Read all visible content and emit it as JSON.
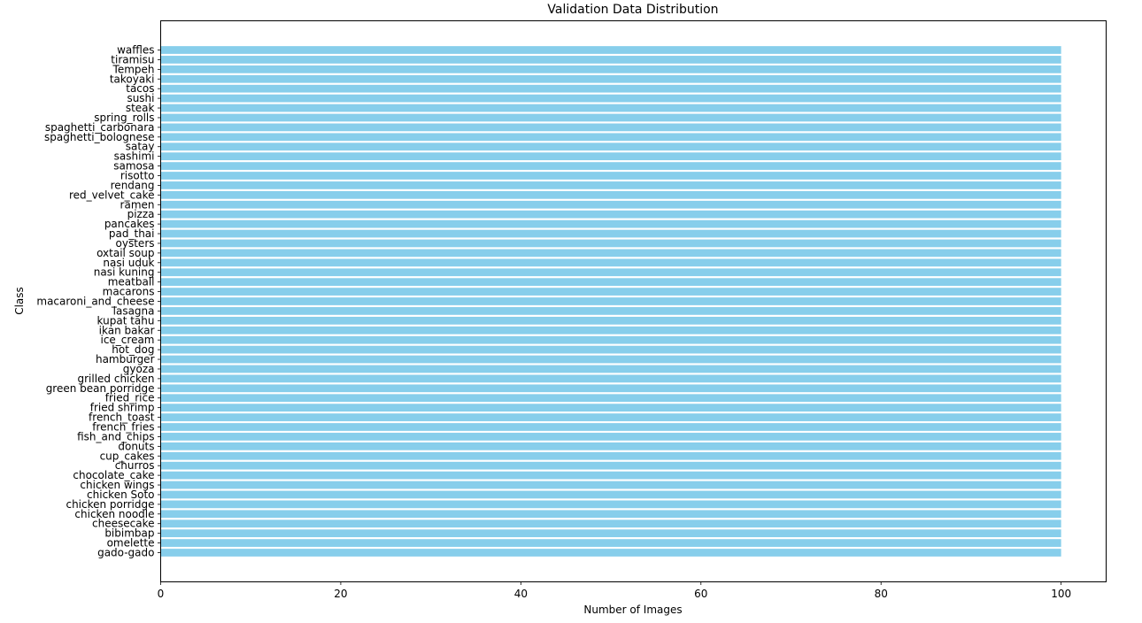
{
  "chart_data": {
    "type": "bar",
    "orientation": "horizontal",
    "title": "Validation Data Distribution",
    "xlabel": "Number of Images",
    "ylabel": "Class",
    "xlim": [
      0,
      105
    ],
    "xticks": [
      0,
      20,
      40,
      60,
      80,
      100
    ],
    "grid": false,
    "bar_color": "#87CEEB",
    "categories": [
      "gado-gado",
      "omelette",
      "bibimbap",
      "cheesecake",
      "chicken noodle",
      "chicken porridge",
      "chicken Soto",
      "chicken wings",
      "chocolate_cake",
      "churros",
      "cup_cakes",
      "donuts",
      "fish_and_chips",
      "french_fries",
      "french_toast",
      "fried shrimp",
      "fried_rice",
      "green bean porridge",
      "grilled chicken",
      "gyoza",
      "hamburger",
      "hot_dog",
      "ice_cream",
      "ikan bakar",
      "kupat tahu",
      "lasagna",
      "macaroni_and_cheese",
      "macarons",
      "meatball",
      "nasi kuning",
      "nasi uduk",
      "oxtail soup",
      "oysters",
      "pad_thai",
      "pancakes",
      "pizza",
      "ramen",
      "red_velvet_cake",
      "rendang",
      "risotto",
      "samosa",
      "sashimi",
      "satay",
      "spaghetti_bolognese",
      "spaghetti_carbonara",
      "spring_rolls",
      "steak",
      "sushi",
      "tacos",
      "takoyaki",
      "Tempeh",
      "tiramisu",
      "waffles"
    ],
    "values": [
      100,
      100,
      100,
      100,
      100,
      100,
      100,
      100,
      100,
      100,
      100,
      100,
      100,
      100,
      100,
      100,
      100,
      100,
      100,
      100,
      100,
      100,
      100,
      100,
      100,
      100,
      100,
      100,
      100,
      100,
      100,
      100,
      100,
      100,
      100,
      100,
      100,
      100,
      100,
      100,
      100,
      100,
      100,
      100,
      100,
      100,
      100,
      100,
      100,
      100,
      100,
      100,
      100
    ]
  }
}
